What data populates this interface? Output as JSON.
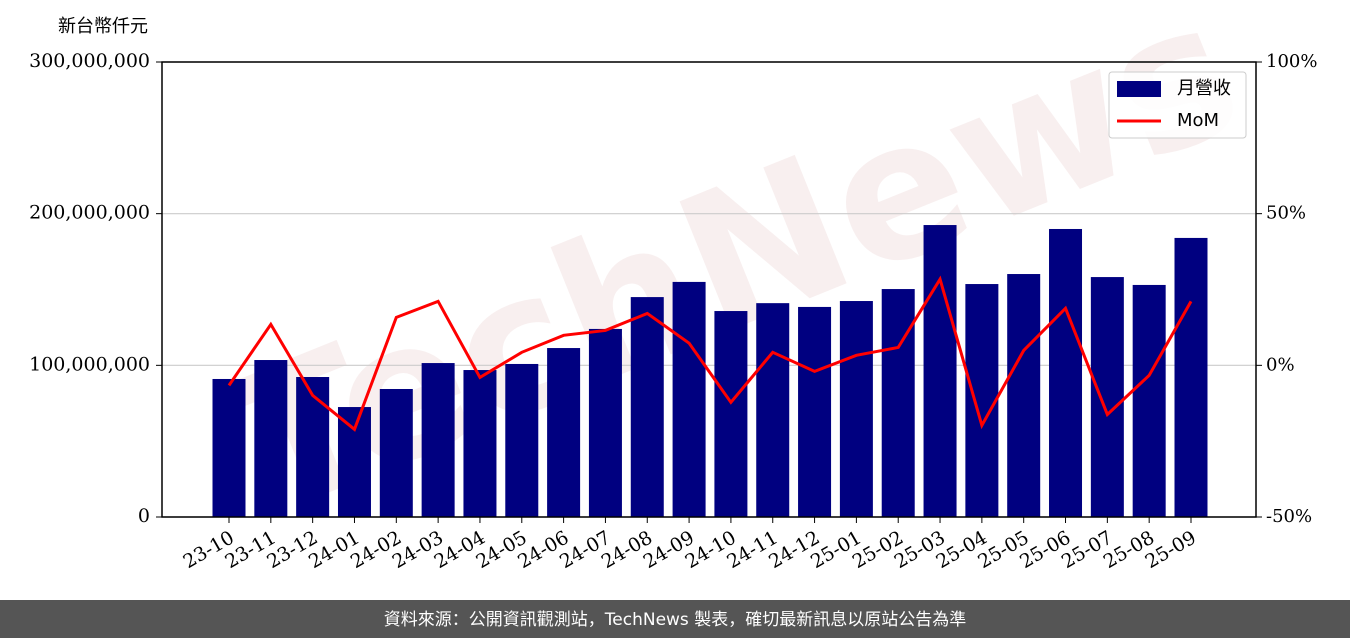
{
  "chart_data": {
    "type": "bar",
    "y_label": "新台幣仟元",
    "watermark": "TechNews",
    "source": "資料來源：公開資訊觀測站，TechNews 製表，確切最新訊息以原站公告為準",
    "categories": [
      "23-10",
      "23-11",
      "23-12",
      "24-01",
      "24-02",
      "24-03",
      "24-04",
      "24-05",
      "24-06",
      "24-07",
      "24-08",
      "24-09",
      "24-10",
      "24-11",
      "24-12",
      "25-01",
      "25-02",
      "25-03",
      "25-04",
      "25-05",
      "25-06",
      "25-07",
      "25-08",
      "25-09"
    ],
    "series": [
      {
        "name": "月營收",
        "type": "bar",
        "color": "#000080",
        "values": [
          91000000,
          103500000,
          92300000,
          72500000,
          84400000,
          101500000,
          96900000,
          100900000,
          111400000,
          124000000,
          145000000,
          155000000,
          135800000,
          141000000,
          138500000,
          142400000,
          150300000,
          192500000,
          153600000,
          160200000,
          189900000,
          158200000,
          153000000,
          184000000
        ]
      },
      {
        "name": "MoM",
        "type": "line",
        "color": "#ff0000",
        "axis": "y2",
        "values": [
          -6.6,
          13.5,
          -9.9,
          -21.1,
          15.8,
          21.1,
          -4,
          4.3,
          9.9,
          11.5,
          17.1,
          7.3,
          -12.2,
          4.3,
          -2,
          3.3,
          5.9,
          28.4,
          -19.8,
          4.9,
          18.8,
          -16.2,
          -3.3,
          21.1
        ]
      }
    ],
    "ylim": [
      0,
      300000000
    ],
    "yticks": [
      0,
      {
        "value": 100000000,
        "label": "100,000,000"
      },
      {
        "value": 200000000,
        "label": "200,000,000"
      },
      {
        "value": 300000000,
        "label": "300,000,000"
      }
    ],
    "y2lim": [
      -50,
      100
    ],
    "y2ticks": [
      {
        "value": -50,
        "label": "-50%"
      },
      {
        "value": 0,
        "label": "0%"
      },
      {
        "value": 50,
        "label": "50%"
      },
      {
        "value": 100,
        "label": "100%"
      }
    ],
    "grid": true,
    "legend": "upper right"
  }
}
